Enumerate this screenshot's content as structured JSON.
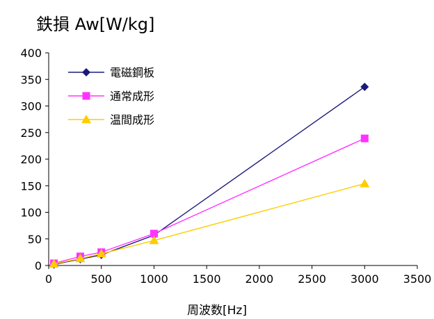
{
  "chart_data": {
    "type": "line",
    "title": "鉄損 Aw[W/kg]",
    "xlabel": "周波数[Hz]",
    "ylabel": "",
    "xlim": [
      0,
      3500
    ],
    "ylim": [
      0,
      400
    ],
    "xticks": [
      0,
      500,
      1000,
      1500,
      2000,
      2500,
      3000,
      3500
    ],
    "yticks": [
      0,
      50,
      100,
      150,
      200,
      250,
      300,
      350,
      400
    ],
    "grid": false,
    "legend_position": "top-left",
    "series": [
      {
        "name": "電磁鋼板",
        "color": "#1a1a7a",
        "marker": "diamond",
        "x": [
          50,
          300,
          500,
          1000,
          3000
        ],
        "y": [
          2,
          12,
          20,
          57,
          336
        ]
      },
      {
        "name": "通常成形",
        "color": "#ff33ff",
        "marker": "square",
        "x": [
          50,
          300,
          500,
          1000,
          3000
        ],
        "y": [
          4,
          17,
          25,
          60,
          239
        ]
      },
      {
        "name": "温間成形",
        "color": "#ffcc00",
        "marker": "triangle",
        "x": [
          50,
          300,
          500,
          1000,
          3000
        ],
        "y": [
          3,
          13,
          22,
          47,
          154
        ]
      }
    ]
  }
}
